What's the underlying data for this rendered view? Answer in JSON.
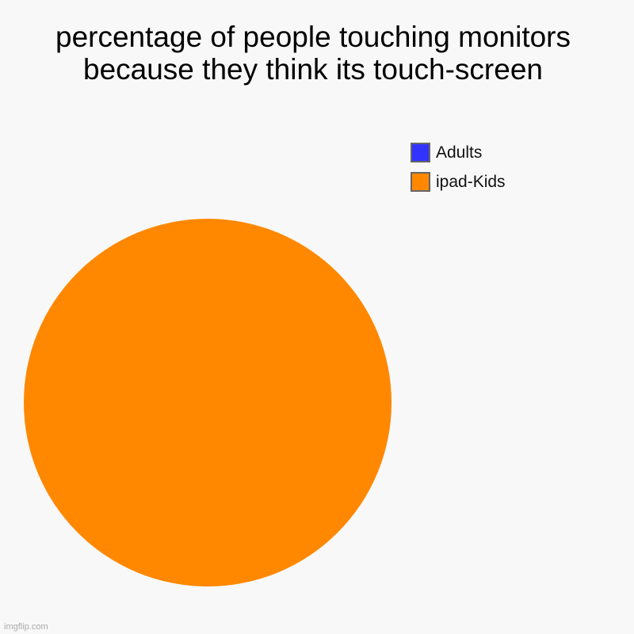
{
  "chart_data": {
    "type": "pie",
    "title": "percentage of people touching monitors because they think its touch-screen",
    "categories": [
      "Adults",
      "ipad-Kids"
    ],
    "values": [
      0,
      100
    ],
    "colors": [
      "#3333ff",
      "#ff8800"
    ],
    "legend": "top-right"
  },
  "watermark": "imgflip.com"
}
